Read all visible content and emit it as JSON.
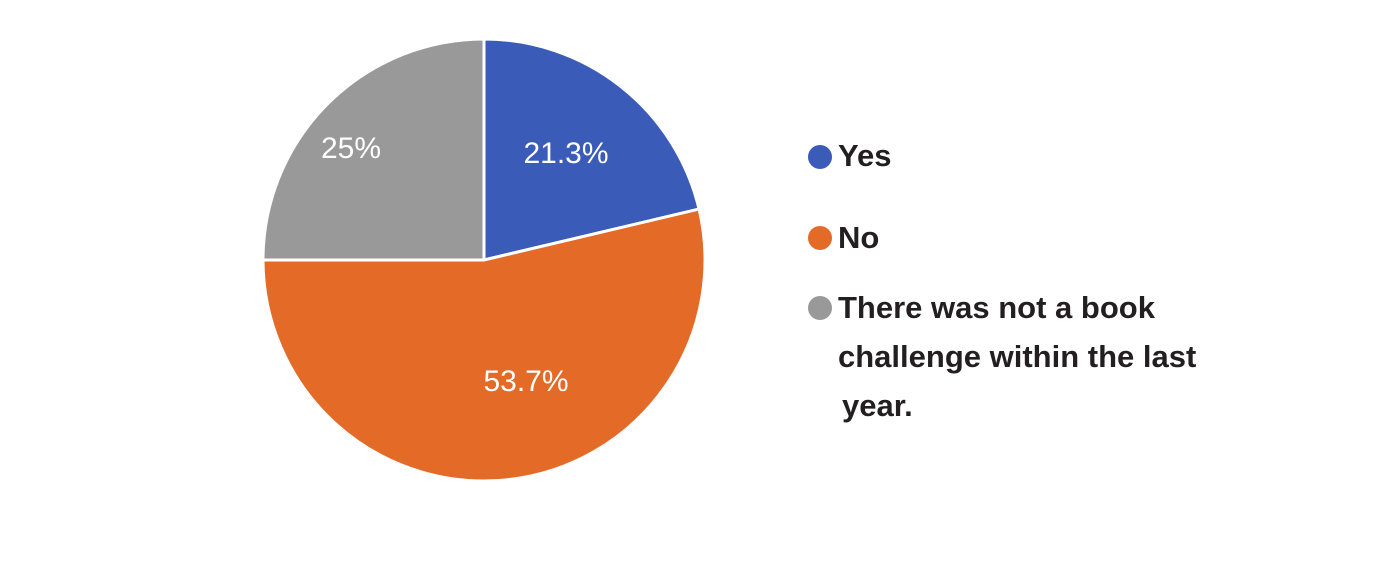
{
  "chart_data": {
    "type": "pie",
    "title": "",
    "start_angle_deg": 0,
    "direction": "clockwise",
    "legend_position": "right",
    "slices": [
      {
        "label": "Yes",
        "value": 21.3,
        "value_label": "21.3%",
        "color": "#3a5bb8"
      },
      {
        "label": "No",
        "value": 53.7,
        "value_label": "53.7%",
        "color": "#e46a28"
      },
      {
        "label": "There was not a book challenge within the last year.",
        "value": 25,
        "value_label": "25%",
        "color": "#999999"
      }
    ],
    "legend": {
      "entries": [
        {
          "lines": [
            "Yes"
          ]
        },
        {
          "lines": [
            "No"
          ]
        },
        {
          "lines": [
            "There was not a book",
            "challenge within the last",
            "year."
          ]
        }
      ]
    }
  }
}
